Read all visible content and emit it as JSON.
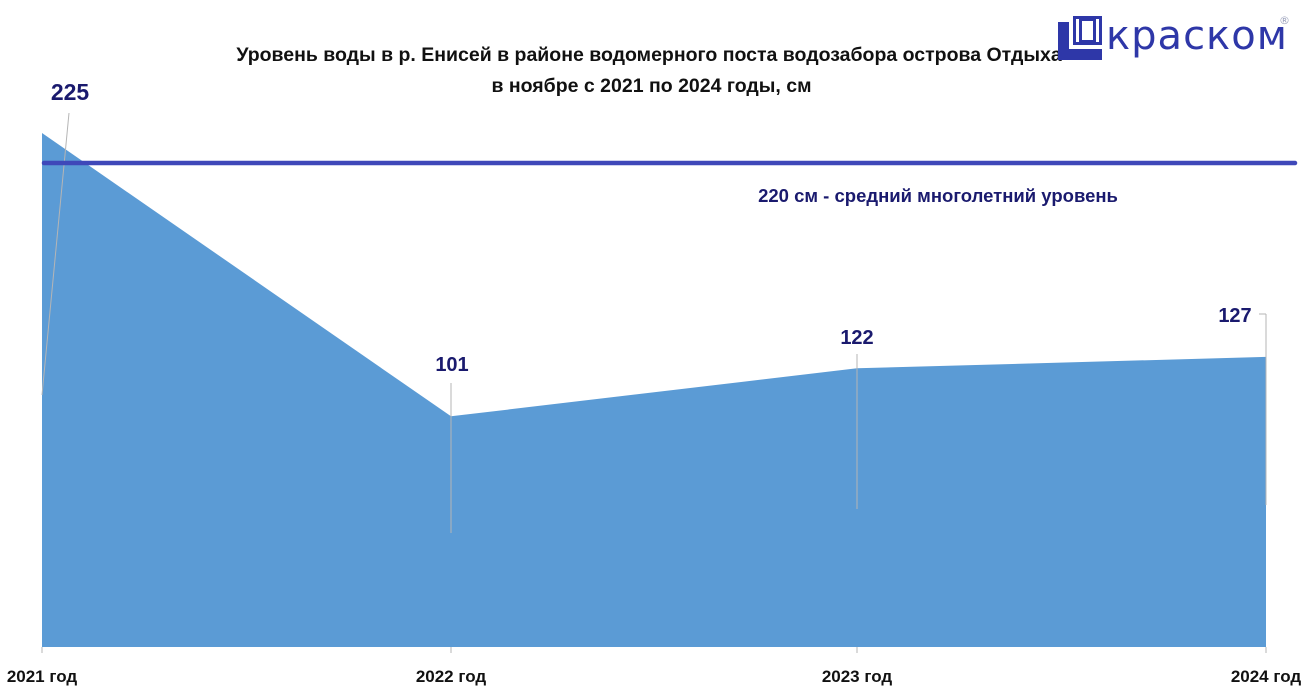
{
  "title_lines": [
    "Уровень воды в р. Енисей в районе водомерного поста водозабора острова Отдыха",
    "в ноябре с 2021 по 2024 годы, см"
  ],
  "logo": {
    "text": "краском",
    "reg": "®",
    "color": "#2e37a8",
    "icon": "film-frame-icon"
  },
  "chart_data": {
    "type": "area",
    "categories": [
      "2021 год",
      "2022 год",
      "2023 год",
      "2024 год"
    ],
    "values": [
      225,
      101,
      122,
      127
    ],
    "ylim": [
      0,
      225
    ],
    "grid": false,
    "legend": "none",
    "area_color": "#5b9bd5",
    "reference_line": {
      "value": 220,
      "label": "220 см - средний многолетний уровень",
      "color": "#3f48b9"
    }
  }
}
